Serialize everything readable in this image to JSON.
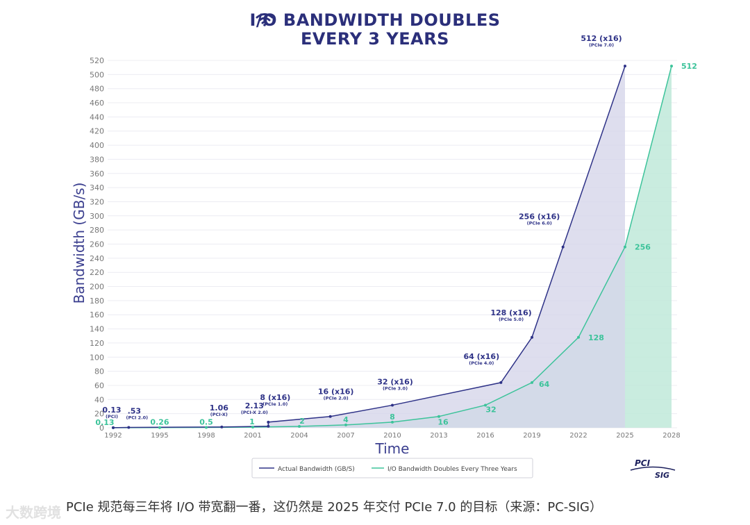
{
  "title": {
    "line1": "I/O BANDWIDTH DOUBLES",
    "line2": "EVERY 3 YEARS",
    "icon": "wifi-icon"
  },
  "colors": {
    "actual": "#2e3287",
    "actual_fill": "#d6d6ea",
    "doubling": "#3cc39a",
    "doubling_fill": "#bfe9d9",
    "title": "#2b2f7a",
    "axis_text": "#777777",
    "grid": "#ececf2"
  },
  "chart_data": {
    "type": "area",
    "title": "I/O BANDWIDTH DOUBLES EVERY 3 YEARS",
    "xlabel": "Time",
    "ylabel": "Bandwidth (GB/s)",
    "xlim": [
      1992,
      2028
    ],
    "ylim": [
      0,
      520
    ],
    "y_ticks": [
      0,
      20,
      40,
      60,
      80,
      100,
      120,
      140,
      160,
      180,
      200,
      220,
      240,
      260,
      280,
      300,
      320,
      340,
      360,
      380,
      400,
      420,
      440,
      460,
      480,
      500,
      520
    ],
    "x_ticks": [
      1992,
      1995,
      1998,
      2001,
      2004,
      2007,
      2010,
      2013,
      2016,
      2019,
      2022,
      2025,
      2028
    ],
    "grid": true,
    "legend_position": "bottom-center",
    "series": [
      {
        "name": "Actual Bandwidth (GB/S)",
        "points": [
          {
            "x": 1992,
            "y": 0.13,
            "label": "0.13",
            "sub": "(PCI)"
          },
          {
            "x": 1993,
            "y": 0.53,
            "label": ".53",
            "sub": "(PCI 2.0)"
          },
          {
            "x": 1999,
            "y": 1.06,
            "label": "1.06",
            "sub": "(PCI-X)"
          },
          {
            "x": 2002,
            "y": 2.13,
            "label": "2.13",
            "sub": "(PCI-X 2.0)"
          },
          {
            "x": 2002,
            "y": 8,
            "label": "8 (x16)",
            "sub": "(PCIe 1.0)"
          },
          {
            "x": 2006,
            "y": 16,
            "label": "16 (x16)",
            "sub": "(PCIe 2.0)"
          },
          {
            "x": 2010,
            "y": 32,
            "label": "32 (x16)",
            "sub": "(PCIe 3.0)"
          },
          {
            "x": 2017,
            "y": 64,
            "label": "64 (x16)",
            "sub": "(PCIe 4.0)"
          },
          {
            "x": 2019,
            "y": 128,
            "label": "128 (x16)",
            "sub": "(PCIe 5.0)"
          },
          {
            "x": 2021,
            "y": 256,
            "label": "256 (x16)",
            "sub": "(PCIe 6.0)"
          },
          {
            "x": 2025,
            "y": 512,
            "label": "512 (x16)",
            "sub": "(PCIe 7.0)"
          }
        ]
      },
      {
        "name": "I/O Bandwidth Doubles Every Three Years",
        "points": [
          {
            "x": 1992,
            "y": 0.13,
            "label": "0.13"
          },
          {
            "x": 1995,
            "y": 0.26,
            "label": "0.26"
          },
          {
            "x": 1998,
            "y": 0.5,
            "label": "0.5"
          },
          {
            "x": 2001,
            "y": 1,
            "label": "1"
          },
          {
            "x": 2004,
            "y": 2,
            "label": "2"
          },
          {
            "x": 2007,
            "y": 4,
            "label": "4"
          },
          {
            "x": 2010,
            "y": 8,
            "label": "8"
          },
          {
            "x": 2013,
            "y": 16,
            "label": "16"
          },
          {
            "x": 2016,
            "y": 32,
            "label": "32"
          },
          {
            "x": 2019,
            "y": 64,
            "label": "64"
          },
          {
            "x": 2022,
            "y": 128,
            "label": "128"
          },
          {
            "x": 2025,
            "y": 256,
            "label": "256"
          },
          {
            "x": 2028,
            "y": 512,
            "label": "512"
          }
        ]
      }
    ],
    "logo": "PCI SIG"
  },
  "caption": "PCIe 规范每三年将 I/O 带宽翻一番，这仍然是 2025 年交付 PCIe 7.0 的目标（来源：PC-SIG）",
  "watermark": "大数跨境"
}
